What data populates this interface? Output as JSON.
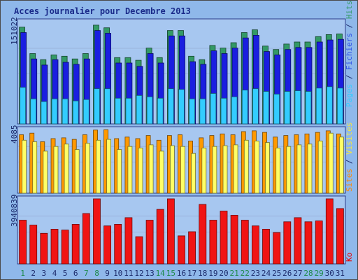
{
  "chart_data": {
    "type": "bar",
    "title": "Acces journalier pour Decembre 2013",
    "categories": [
      "1",
      "2",
      "3",
      "4",
      "5",
      "6",
      "7",
      "8",
      "9",
      "10",
      "11",
      "12",
      "13",
      "14",
      "15",
      "16",
      "17",
      "18",
      "19",
      "20",
      "21",
      "22",
      "23",
      "24",
      "25",
      "26",
      "27",
      "28",
      "29",
      "30",
      "31"
    ],
    "weekend_days": [
      "1",
      "7",
      "8",
      "14",
      "15",
      "21",
      "22",
      "28",
      "29"
    ],
    "panels": [
      {
        "id": "pages-fichiers-hits",
        "ymax_label": "151022",
        "ymax": 151022,
        "right_label": [
          {
            "text": "Pages",
            "color": "#33ccff"
          },
          {
            "text": " / ",
            "color": "#1b2a6b"
          },
          {
            "text": "Fichiers",
            "color": "#2b4ee8"
          },
          {
            "text": " / ",
            "color": "#1b2a6b"
          },
          {
            "text": "Hits",
            "color": "#339966"
          }
        ],
        "series": [
          {
            "name": "Hits",
            "color": "#339966",
            "values": [
              143000,
              104000,
              95000,
              102000,
              100000,
              96000,
              104000,
              146000,
              142000,
              98000,
              98000,
              94000,
              112000,
              98000,
              138000,
              138000,
              100000,
              95000,
              116000,
              112000,
              120000,
              135000,
              139000,
              115000,
              110000,
              118000,
              121000,
              121000,
              129000,
              132000,
              133000
            ]
          },
          {
            "name": "Fichiers",
            "color": "#1a1ee0",
            "values": [
              135000,
              96000,
              87000,
              95000,
              91000,
              88000,
              96000,
              138000,
              134000,
              90000,
              90000,
              85000,
              104000,
              90000,
              130000,
              130000,
              92000,
              88000,
              108000,
              104000,
              112000,
              127000,
              131000,
              107000,
              102000,
              110000,
              113000,
              113000,
              121000,
              124000,
              125000
            ]
          },
          {
            "name": "Pages",
            "color": "#33ccff",
            "values": [
              54000,
              37000,
              33000,
              37000,
              37000,
              34000,
              36000,
              52000,
              52000,
              38000,
              38000,
              42000,
              40000,
              38000,
              52000,
              51000,
              37000,
              37000,
              45000,
              38000,
              40000,
              50000,
              52000,
              48000,
              44000,
              48000,
              49000,
              48000,
              53000,
              55000,
              53000
            ]
          }
        ]
      },
      {
        "id": "sites-visites",
        "ymax_label": "4085",
        "ymax": 4085,
        "right_label": [
          {
            "text": "Sites",
            "color": "#ff8800"
          },
          {
            "text": " / ",
            "color": "#1b2a6b"
          },
          {
            "text": "Visites",
            "color": "#f5e640"
          }
        ],
        "series": [
          {
            "name": "Visites",
            "color": "#ffff66",
            "values": [
              3400,
              3300,
              2700,
              3000,
              3150,
              2800,
              3200,
              3400,
              3450,
              2800,
              3000,
              2900,
              3100,
              2700,
              3050,
              3000,
              2550,
              2900,
              3000,
              3050,
              3100,
              3400,
              3350,
              3250,
              2900,
              3000,
              3100,
              3150,
              3350,
              3850,
              3600
            ]
          },
          {
            "name": "Sites",
            "color": "#ff9900",
            "values": [
              3750,
              3850,
              3300,
              3500,
              3550,
              3450,
              3750,
              4050,
              4070,
              3500,
              3600,
              3500,
              3700,
              3400,
              3700,
              3750,
              3350,
              3550,
              3700,
              3800,
              3750,
              3950,
              4000,
              3900,
              3600,
              3700,
              3750,
              3800,
              3900,
              4000,
              3800
            ]
          }
        ]
      },
      {
        "id": "ko",
        "ymax_label": "3940839",
        "ymax": 3940839,
        "right_label": [
          {
            "text": "Ko",
            "color": "#e60000"
          }
        ],
        "series": [
          {
            "name": "Ko",
            "color": "#f01414",
            "values": [
              2650000,
              2350000,
              1850000,
              2100000,
              2050000,
              2400000,
              3050000,
              3940839,
              2300000,
              2400000,
              2800000,
              1650000,
              2650000,
              3300000,
              3940839,
              1700000,
              1950000,
              3600000,
              2650000,
              3200000,
              2950000,
              2650000,
              2300000,
              2100000,
              1900000,
              2550000,
              2800000,
              2550000,
              2600000,
              3940839,
              3350000
            ]
          }
        ]
      }
    ]
  }
}
